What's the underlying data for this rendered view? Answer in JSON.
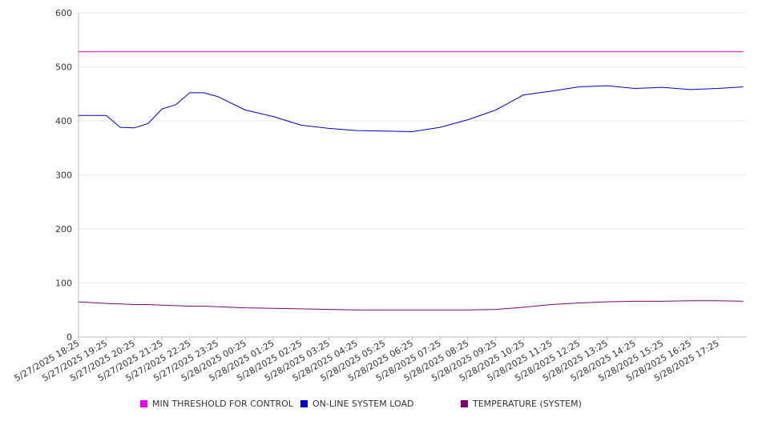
{
  "chart_data": {
    "type": "line",
    "ylim": [
      0,
      600
    ],
    "y_ticks": [
      0,
      100,
      200,
      300,
      400,
      500,
      600
    ],
    "grid": true,
    "legend_position": "bottom",
    "x_tick_labels": [
      "5/27/2025 18:25",
      "5/27/2025 19:25",
      "5/27/2025 20:25",
      "5/27/2025 21:25",
      "5/27/2025 22:25",
      "5/27/2025 23:25",
      "5/28/2025 00:25",
      "5/28/2025 01:25",
      "5/28/2025 02:25",
      "5/28/2025 03:25",
      "5/28/2025 04:25",
      "5/28/2025 05:25",
      "5/28/2025 06:25",
      "5/28/2025 07:25",
      "5/28/2025 08:25",
      "5/28/2025 09:25",
      "5/28/2025 10:25",
      "5/28/2025 11:25",
      "5/28/2025 12:25",
      "5/28/2025 13:25",
      "5/28/2025 14:25",
      "5/28/2025 15:25",
      "5/28/2025 16:25",
      "5/28/2025 17:25"
    ],
    "x_hours": [
      0,
      1,
      1.5,
      2,
      2.5,
      3,
      3.5,
      4,
      4.5,
      5,
      6,
      7,
      8,
      9,
      10,
      11,
      12,
      13,
      14,
      15,
      16,
      17,
      18,
      19,
      20,
      21,
      22,
      23,
      23.9
    ],
    "series": [
      {
        "name": "MIN THRESHOLD FOR CONTROL",
        "color": "#ee00ee",
        "values": [
          528,
          528,
          528,
          528,
          528,
          528,
          528,
          528,
          528,
          528,
          528,
          528,
          528,
          528,
          528,
          528,
          528,
          528,
          528,
          528,
          528,
          528,
          528,
          528,
          528,
          528,
          528,
          528,
          528
        ]
      },
      {
        "name": "ON-LINE SYSTEM LOAD",
        "color": "#0000cc",
        "values": [
          410,
          410,
          388,
          387,
          395,
          422,
          430,
          452,
          452,
          445,
          420,
          408,
          392,
          386,
          382,
          381,
          380,
          388,
          402,
          420,
          448,
          455,
          463,
          465,
          460,
          462,
          458,
          460,
          463
        ]
      },
      {
        "name": "TEMPERATURE (SYSTEM)",
        "color": "#800080",
        "values": [
          65,
          62,
          61,
          60,
          60,
          59,
          58,
          57,
          57,
          56,
          54,
          53,
          52,
          51,
          50,
          50,
          50,
          50,
          50,
          51,
          55,
          60,
          63,
          65,
          66,
          66,
          67,
          67,
          66
        ]
      }
    ]
  }
}
